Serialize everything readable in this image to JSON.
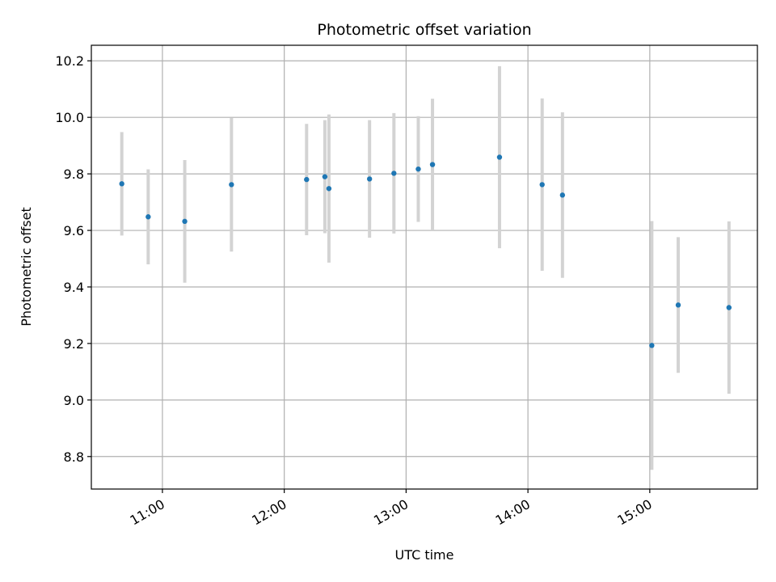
{
  "chart_data": {
    "type": "scatter",
    "title": "Photometric offset variation",
    "xlabel": "UTC time",
    "ylabel": "Photometric offset",
    "x_ticks": [
      "11:00",
      "12:00",
      "13:00",
      "14:00",
      "15:00"
    ],
    "y_ticks": [
      "8.8",
      "9.0",
      "9.2",
      "9.4",
      "9.6",
      "9.8",
      "10.0",
      "10.2"
    ],
    "xlim": [
      "10:25",
      "15:53"
    ],
    "ylim": [
      8.685,
      10.255
    ],
    "grid": true,
    "point_color": "#1f77b4",
    "errorbar_color": "#d3d3d3",
    "series": [
      {
        "points": [
          {
            "x": "10:40",
            "y": 9.765,
            "err": 0.183
          },
          {
            "x": "10:53",
            "y": 9.648,
            "err": 0.168
          },
          {
            "x": "11:11",
            "y": 9.632,
            "err": 0.217
          },
          {
            "x": "11:34",
            "y": 9.762,
            "err": 0.237
          },
          {
            "x": "12:11",
            "y": 9.78,
            "err": 0.197
          },
          {
            "x": "12:20",
            "y": 9.79,
            "err": 0.2
          },
          {
            "x": "12:22",
            "y": 9.748,
            "err": 0.262
          },
          {
            "x": "12:42",
            "y": 9.782,
            "err": 0.208
          },
          {
            "x": "12:54",
            "y": 9.802,
            "err": 0.213
          },
          {
            "x": "13:06",
            "y": 9.817,
            "err": 0.187
          },
          {
            "x": "13:13",
            "y": 9.833,
            "err": 0.233
          },
          {
            "x": "13:46",
            "y": 9.859,
            "err": 0.322
          },
          {
            "x": "14:07",
            "y": 9.762,
            "err": 0.305
          },
          {
            "x": "14:17",
            "y": 9.725,
            "err": 0.293
          },
          {
            "x": "15:01",
            "y": 9.193,
            "err": 0.44
          },
          {
            "x": "15:14",
            "y": 9.336,
            "err": 0.24
          },
          {
            "x": "15:39",
            "y": 9.327,
            "err": 0.305
          }
        ]
      }
    ]
  }
}
